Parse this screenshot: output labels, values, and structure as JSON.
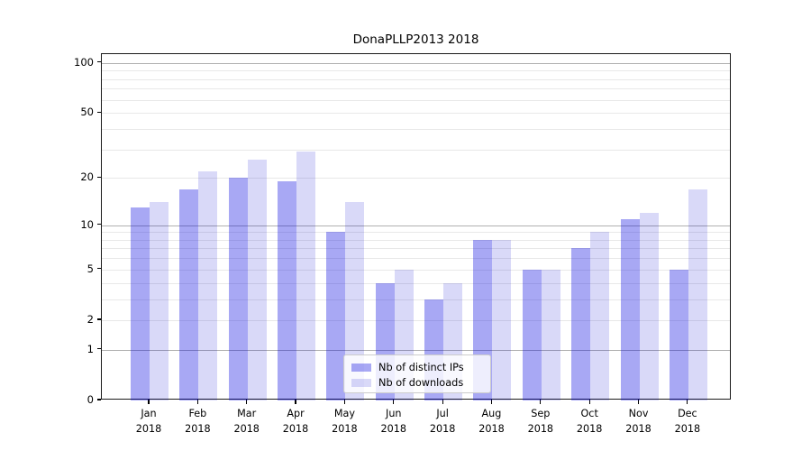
{
  "chart_data": {
    "type": "bar",
    "title": "DonaPLLP2013 2018",
    "yscale": "log1p",
    "ylim": [
      0,
      113
    ],
    "yticks": [
      0,
      1,
      2,
      5,
      10,
      20,
      50,
      100
    ],
    "grid": {
      "major_values": [
        1,
        10,
        100
      ],
      "minor_values": [
        2,
        3,
        4,
        5,
        6,
        7,
        8,
        9,
        20,
        30,
        40,
        50,
        60,
        70,
        80,
        90
      ],
      "major_color": "#b0b0b0",
      "minor_color": "#e8e8e8"
    },
    "categories": [
      "Jan",
      "Feb",
      "Mar",
      "Apr",
      "May",
      "Jun",
      "Jul",
      "Aug",
      "Sep",
      "Oct",
      "Nov",
      "Dec"
    ],
    "category_year": "2018",
    "series": [
      {
        "name": "Nb of distinct IPs",
        "color": "rgba(0,0,223,0.34)",
        "solid_color": "#a8a8f4",
        "values": [
          13,
          17,
          20,
          19,
          9,
          4,
          3,
          8,
          5,
          7,
          11,
          5
        ]
      },
      {
        "name": "Nb of downloads",
        "color": "rgba(0,0,210,0.15)",
        "solid_color": "#d8d8f8",
        "values": [
          14,
          22,
          26,
          29,
          14,
          5,
          4,
          8,
          5,
          9,
          12,
          17
        ]
      }
    ],
    "legend": {
      "position": "lower-center",
      "entries": [
        "Nb of distinct IPs",
        "Nb of downloads"
      ]
    },
    "frame_color": "#1a1a1a",
    "background_color": "#ffffff"
  }
}
